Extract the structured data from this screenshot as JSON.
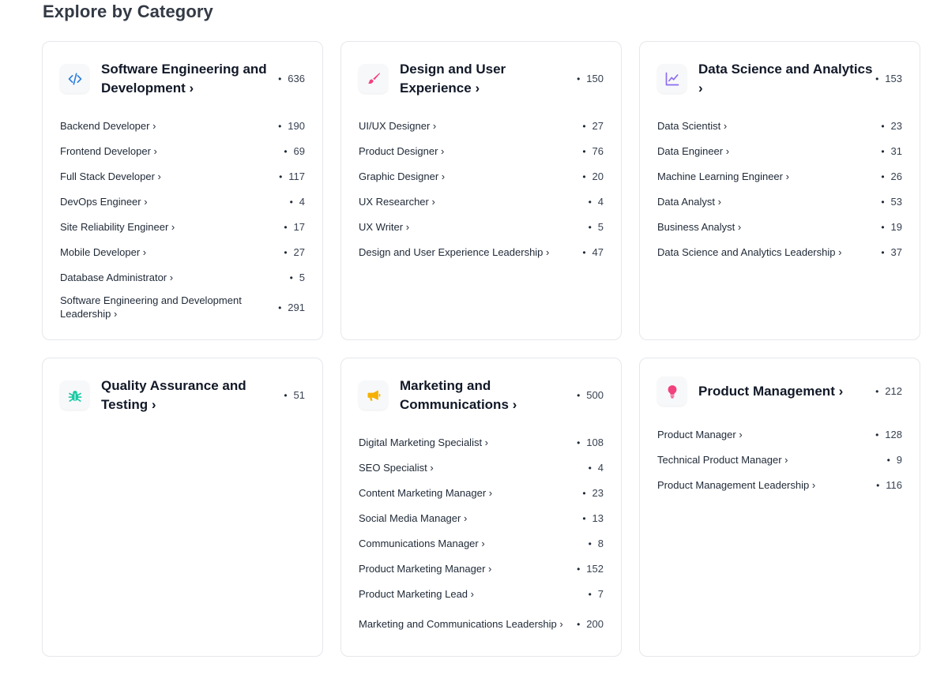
{
  "section_title": "Explore by Category",
  "categories": [
    {
      "title": "Software Engineering and Development ›",
      "count": "636",
      "icon": "code-icon",
      "accent": "#2f7fe0",
      "roles": [
        {
          "label": "Backend Developer ›",
          "count": "190"
        },
        {
          "label": "Frontend Developer ›",
          "count": "69"
        },
        {
          "label": "Full Stack Developer ›",
          "count": "117"
        },
        {
          "label": "DevOps Engineer ›",
          "count": "4"
        },
        {
          "label": "Site Reliability Engineer ›",
          "count": "17"
        },
        {
          "label": "Mobile Developer ›",
          "count": "27"
        },
        {
          "label": "Database Administrator ›",
          "count": "5"
        },
        {
          "label": "Software Engineering and Development Leadership ›",
          "count": "291"
        }
      ]
    },
    {
      "title": "Design and User Experience ›",
      "count": "150",
      "icon": "paintbrush-icon",
      "accent": "#f2427d",
      "roles": [
        {
          "label": "UI/UX Designer ›",
          "count": "27"
        },
        {
          "label": "Product Designer ›",
          "count": "76"
        },
        {
          "label": "Graphic Designer ›",
          "count": "20"
        },
        {
          "label": "UX Researcher ›",
          "count": "4"
        },
        {
          "label": "UX Writer ›",
          "count": "5"
        },
        {
          "label": "Design and User Experience Leadership ›",
          "count": "47"
        }
      ]
    },
    {
      "title": "Data Science and Analytics ›",
      "count": "153",
      "icon": "line-chart-icon",
      "accent": "#8b6cf0",
      "roles": [
        {
          "label": "Data Scientist ›",
          "count": "23"
        },
        {
          "label": "Data Engineer ›",
          "count": "31"
        },
        {
          "label": "Machine Learning Engineer ›",
          "count": "26"
        },
        {
          "label": "Data Analyst ›",
          "count": "53"
        },
        {
          "label": "Business Analyst ›",
          "count": "19"
        },
        {
          "label": "Data Science and Analytics Leadership ›",
          "count": "37"
        }
      ]
    },
    {
      "title": "Quality Assurance and Testing ›",
      "count": "51",
      "icon": "bug-icon",
      "accent": "#19c9a3",
      "roles": []
    },
    {
      "title": "Marketing and Communications ›",
      "count": "500",
      "icon": "megaphone-icon",
      "accent": "#f5b000",
      "roles": [
        {
          "label": "Digital Marketing Specialist ›",
          "count": "108"
        },
        {
          "label": "SEO Specialist ›",
          "count": "4"
        },
        {
          "label": "Content Marketing Manager ›",
          "count": "23"
        },
        {
          "label": "Social Media Manager ›",
          "count": "13"
        },
        {
          "label": "Communications Manager ›",
          "count": "8"
        },
        {
          "label": "Product Marketing Manager ›",
          "count": "152"
        },
        {
          "label": "Product Marketing Lead ›",
          "count": "7"
        },
        {
          "label": "Marketing and Communications Leadership ›",
          "count": "200"
        }
      ]
    },
    {
      "title": "Product Management ›",
      "count": "212",
      "icon": "lightbulb-icon",
      "accent": "#f2427d",
      "roles": [
        {
          "label": "Product Manager ›",
          "count": "128"
        },
        {
          "label": "Technical Product Manager ›",
          "count": "9"
        },
        {
          "label": "Product Management Leadership ›",
          "count": "116"
        }
      ]
    }
  ]
}
